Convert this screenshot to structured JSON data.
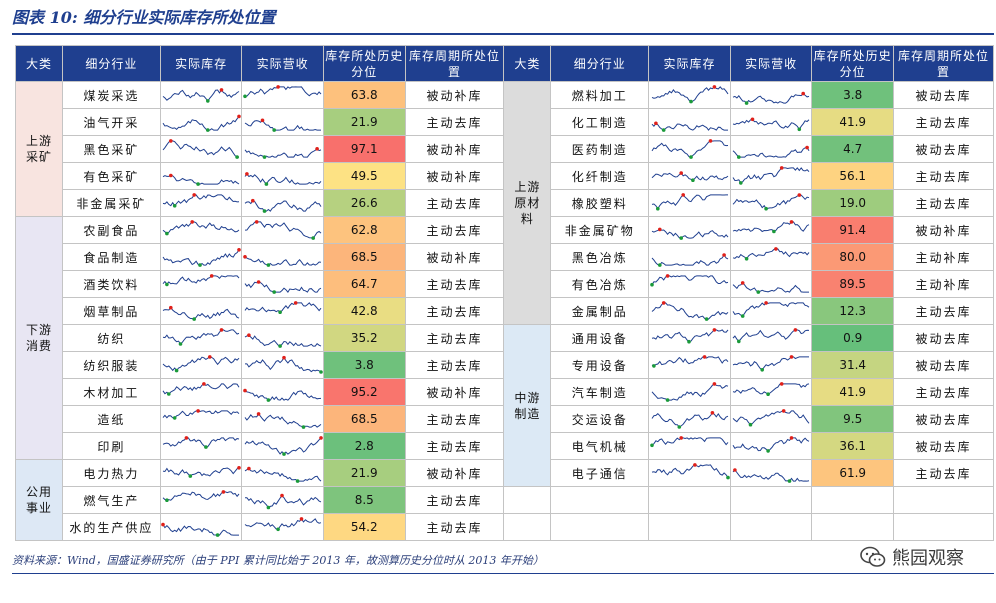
{
  "title": "图表 10:  细分行业实际库存所处位置",
  "headers": [
    "大类",
    "细分行业",
    "实际库存",
    "实际营收",
    "库存所处历史分位",
    "库存周期所处位置"
  ],
  "colors": {
    "low": "#63be7b",
    "mid": "#ffe284",
    "high": "#f8696b",
    "spark_line": "#1f3f8f",
    "spark_high": "#e0201a",
    "spark_low": "#1a9a3a"
  },
  "categories": {
    "up": "上游采矿",
    "down": "下游消费",
    "pub": "公用事业",
    "raw": "上游原材料",
    "mid": "中游制造"
  },
  "left_rows": [
    {
      "industry": "煤炭采选",
      "percentile": "63.8",
      "stage": "被动补库"
    },
    {
      "industry": "油气开采",
      "percentile": "21.9",
      "stage": "主动去库"
    },
    {
      "industry": "黑色采矿",
      "percentile": "97.1",
      "stage": "被动补库"
    },
    {
      "industry": "有色采矿",
      "percentile": "49.5",
      "stage": "被动补库"
    },
    {
      "industry": "非金属采矿",
      "percentile": "26.6",
      "stage": "主动去库"
    },
    {
      "industry": "农副食品",
      "percentile": "62.8",
      "stage": "主动去库"
    },
    {
      "industry": "食品制造",
      "percentile": "68.5",
      "stage": "被动补库"
    },
    {
      "industry": "酒类饮料",
      "percentile": "64.7",
      "stage": "主动去库"
    },
    {
      "industry": "烟草制品",
      "percentile": "42.8",
      "stage": "主动去库"
    },
    {
      "industry": "纺织",
      "percentile": "35.2",
      "stage": "主动去库"
    },
    {
      "industry": "纺织服装",
      "percentile": "3.8",
      "stage": "主动去库"
    },
    {
      "industry": "木材加工",
      "percentile": "95.2",
      "stage": "被动补库"
    },
    {
      "industry": "造纸",
      "percentile": "68.5",
      "stage": "主动去库"
    },
    {
      "industry": "印刷",
      "percentile": "2.8",
      "stage": "主动去库"
    },
    {
      "industry": "电力热力",
      "percentile": "21.9",
      "stage": "被动补库"
    },
    {
      "industry": "燃气生产",
      "percentile": "8.5",
      "stage": "主动去库"
    },
    {
      "industry": "水的生产供应",
      "percentile": "54.2",
      "stage": "主动去库"
    }
  ],
  "right_rows": [
    {
      "industry": "燃料加工",
      "percentile": "3.8",
      "stage": "被动去库"
    },
    {
      "industry": "化工制造",
      "percentile": "41.9",
      "stage": "主动去库"
    },
    {
      "industry": "医药制造",
      "percentile": "4.7",
      "stage": "被动去库"
    },
    {
      "industry": "化纤制造",
      "percentile": "56.1",
      "stage": "主动去库"
    },
    {
      "industry": "橡胶塑料",
      "percentile": "19.0",
      "stage": "主动去库"
    },
    {
      "industry": "非金属矿物",
      "percentile": "91.4",
      "stage": "被动补库"
    },
    {
      "industry": "黑色冶炼",
      "percentile": "80.0",
      "stage": "主动补库"
    },
    {
      "industry": "有色冶炼",
      "percentile": "89.5",
      "stage": "主动补库"
    },
    {
      "industry": "金属制品",
      "percentile": "12.3",
      "stage": "主动去库"
    },
    {
      "industry": "通用设备",
      "percentile": "0.9",
      "stage": "被动去库"
    },
    {
      "industry": "专用设备",
      "percentile": "31.4",
      "stage": "被动去库"
    },
    {
      "industry": "汽车制造",
      "percentile": "41.9",
      "stage": "主动去库"
    },
    {
      "industry": "交运设备",
      "percentile": "9.5",
      "stage": "被动去库"
    },
    {
      "industry": "电气机械",
      "percentile": "36.1",
      "stage": "被动去库"
    },
    {
      "industry": "电子通信",
      "percentile": "61.9",
      "stage": "主动去库"
    }
  ],
  "source": "资料来源：Wind，国盛证券研究所（由于 PPI 累计同比始于 2013 年，故测算历史分位时从 2013 年开始）",
  "watermark": "熊园观察",
  "watermark_icon": "wechat-icon"
}
